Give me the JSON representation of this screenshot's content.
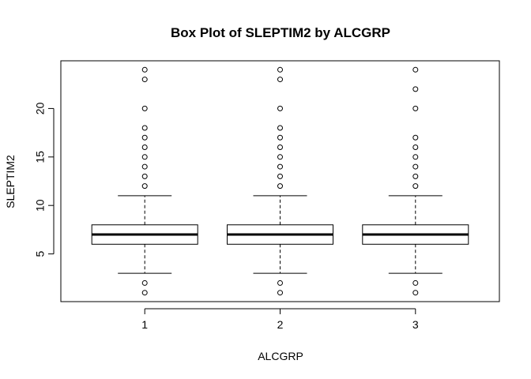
{
  "chart_data": {
    "type": "box",
    "title": "Box Plot of SLEPTIM2 by ALCGRP",
    "xlabel": "ALCGRP",
    "ylabel": "SLEPTIM2",
    "categories": [
      "1",
      "2",
      "3"
    ],
    "yticks": [
      5,
      10,
      15,
      20
    ],
    "ylim": [
      0.08,
      24.92
    ],
    "boxes": [
      {
        "category": "1",
        "whisker_low": 3,
        "q1": 6,
        "median": 7,
        "q3": 8,
        "whisker_high": 11,
        "outliers": [
          1,
          2,
          12,
          13,
          14,
          15,
          16,
          17,
          18,
          20,
          23,
          24
        ]
      },
      {
        "category": "2",
        "whisker_low": 3,
        "q1": 6,
        "median": 7,
        "q3": 8,
        "whisker_high": 11,
        "outliers": [
          1,
          2,
          12,
          13,
          14,
          15,
          16,
          17,
          18,
          20,
          23,
          24
        ]
      },
      {
        "category": "3",
        "whisker_low": 3,
        "q1": 6,
        "median": 7,
        "q3": 8,
        "whisker_high": 11,
        "outliers": [
          1,
          2,
          12,
          13,
          14,
          15,
          16,
          17,
          20,
          22,
          24
        ]
      }
    ]
  }
}
